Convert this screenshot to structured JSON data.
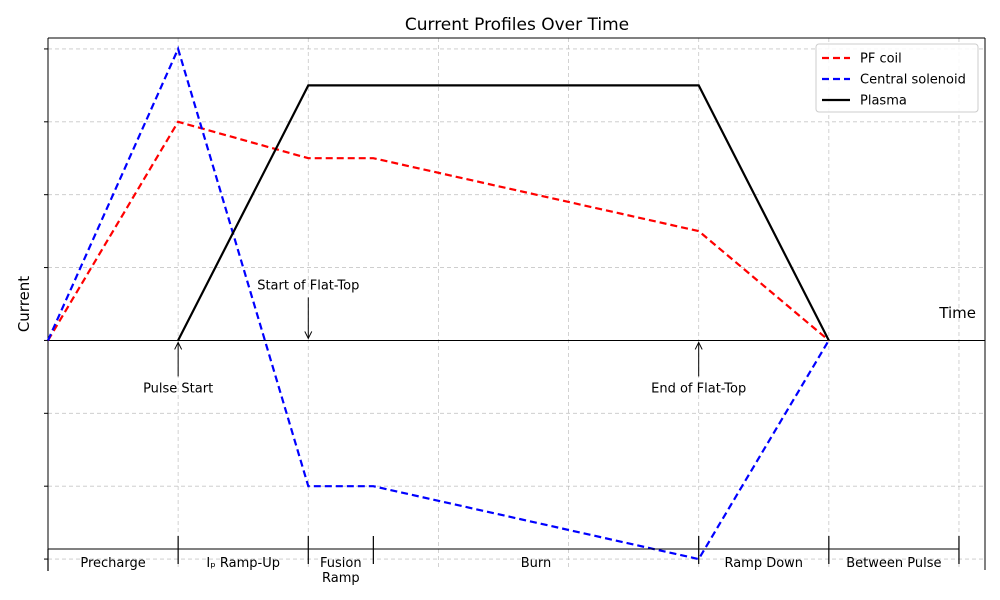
{
  "chart_data": {
    "type": "line",
    "title": "Current Profiles Over Time",
    "xlabel": "Time",
    "ylabel": "Current",
    "xlim": [
      0,
      7.2
    ],
    "ylim": [
      -3.15,
      4.15
    ],
    "grid": true,
    "legend_position": "top-right",
    "series": [
      {
        "name": "PF coil",
        "color": "#ff0000",
        "style": "dashed",
        "x": [
          0,
          1,
          2,
          2.5,
          5,
          6
        ],
        "y": [
          0,
          3,
          2.5,
          2.5,
          1.5,
          0
        ]
      },
      {
        "name": "Central solenoid",
        "color": "#0000ff",
        "style": "dashed",
        "x": [
          0,
          1,
          2,
          2.5,
          5,
          6
        ],
        "y": [
          0,
          4,
          -2,
          -2,
          -3,
          0
        ]
      },
      {
        "name": "Plasma",
        "color": "#000000",
        "style": "solid",
        "x": [
          1,
          2,
          5,
          6
        ],
        "y": [
          0,
          3.5,
          3.5,
          0
        ]
      }
    ],
    "annotations": [
      {
        "text": "Start of Flat-Top",
        "x": 2,
        "y": 0,
        "direction": "down"
      },
      {
        "text": "Pulse Start",
        "x": 1,
        "y": 0,
        "direction": "up"
      },
      {
        "text": "End of Flat-Top",
        "x": 5,
        "y": 0,
        "direction": "up"
      }
    ],
    "phases": [
      {
        "label": "Precharge",
        "start": 0,
        "end": 1
      },
      {
        "label": "Iₚ Ramp-Up",
        "start": 1,
        "end": 2
      },
      {
        "label": "Fusion\nRamp",
        "start": 2,
        "end": 2.5
      },
      {
        "label": "Burn",
        "start": 2.5,
        "end": 5
      },
      {
        "label": "Ramp Down",
        "start": 5,
        "end": 6
      },
      {
        "label": "Between Pulse",
        "start": 6,
        "end": 7
      }
    ],
    "xticks": [
      0,
      1,
      2,
      3,
      4,
      5,
      6,
      7
    ],
    "yticks": [
      -3,
      -2,
      -1,
      0,
      1,
      2,
      3,
      4
    ]
  }
}
